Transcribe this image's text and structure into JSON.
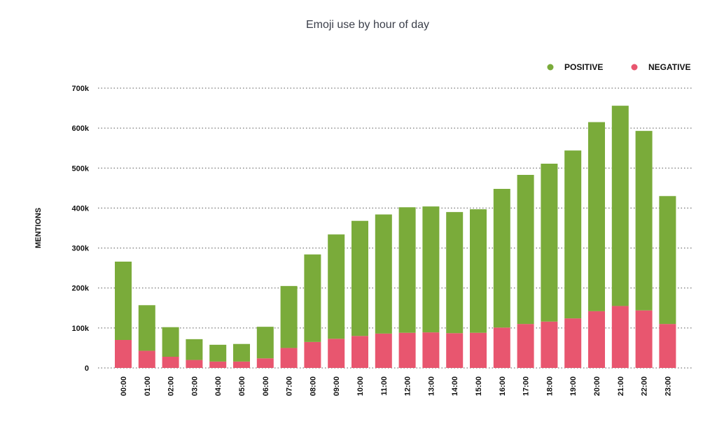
{
  "chart_data": {
    "type": "bar",
    "stacked": true,
    "title": "Emoji use by hour of day",
    "xlabel": "",
    "ylabel": "MENTIONS",
    "ylim": [
      0,
      700000
    ],
    "yticks": [
      0,
      100000,
      200000,
      300000,
      400000,
      500000,
      600000,
      700000
    ],
    "ytick_labels": [
      "0",
      "100k",
      "200k",
      "300k",
      "400k",
      "500k",
      "600k",
      "700k"
    ],
    "grid": true,
    "legend_position": "top-right",
    "categories": [
      "00:00",
      "01:00",
      "02:00",
      "03:00",
      "04:00",
      "05:00",
      "06:00",
      "07:00",
      "08:00",
      "09:00",
      "10:00",
      "11:00",
      "12:00",
      "13:00",
      "14:00",
      "15:00",
      "16:00",
      "17:00",
      "18:00",
      "19:00",
      "20:00",
      "21:00",
      "22:00",
      "23:00"
    ],
    "series": [
      {
        "name": "NEGATIVE",
        "color": "#e8566f",
        "values": [
          70000,
          43000,
          28000,
          20000,
          16000,
          16000,
          24000,
          50000,
          65000,
          73000,
          80000,
          86000,
          88000,
          89000,
          87000,
          88000,
          101000,
          110000,
          116000,
          124000,
          142000,
          155000,
          144000,
          110000
        ]
      },
      {
        "name": "POSITIVE",
        "color": "#7aab3a",
        "values": [
          196000,
          114000,
          74000,
          52000,
          42000,
          44000,
          79000,
          155000,
          219000,
          261000,
          288000,
          298000,
          314000,
          315000,
          303000,
          309000,
          347000,
          373000,
          395000,
          420000,
          473000,
          501000,
          449000,
          320000
        ]
      }
    ],
    "legend": [
      {
        "name": "POSITIVE",
        "color": "#7aab3a"
      },
      {
        "name": "NEGATIVE",
        "color": "#e8566f"
      }
    ]
  }
}
